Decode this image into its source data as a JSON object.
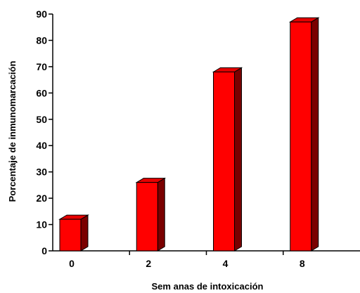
{
  "chart_data": {
    "type": "bar",
    "title": "",
    "xlabel": "Sem anas de intoxicación",
    "ylabel": "Porcentaje de inmunomarcación",
    "categories": [
      "0",
      "2",
      "4",
      "8"
    ],
    "values": [
      12,
      26,
      68,
      87
    ],
    "ylim": [
      0,
      90
    ],
    "yticks": [
      "0",
      "10",
      "20",
      "30",
      "40",
      "50",
      "60",
      "70",
      "80",
      "90"
    ],
    "grid": false,
    "legend": "none",
    "colors": {
      "bar_front": "#ff0000",
      "bar_side": "#7a0000",
      "bar_top": "#e60000",
      "axis": "#000000"
    }
  }
}
